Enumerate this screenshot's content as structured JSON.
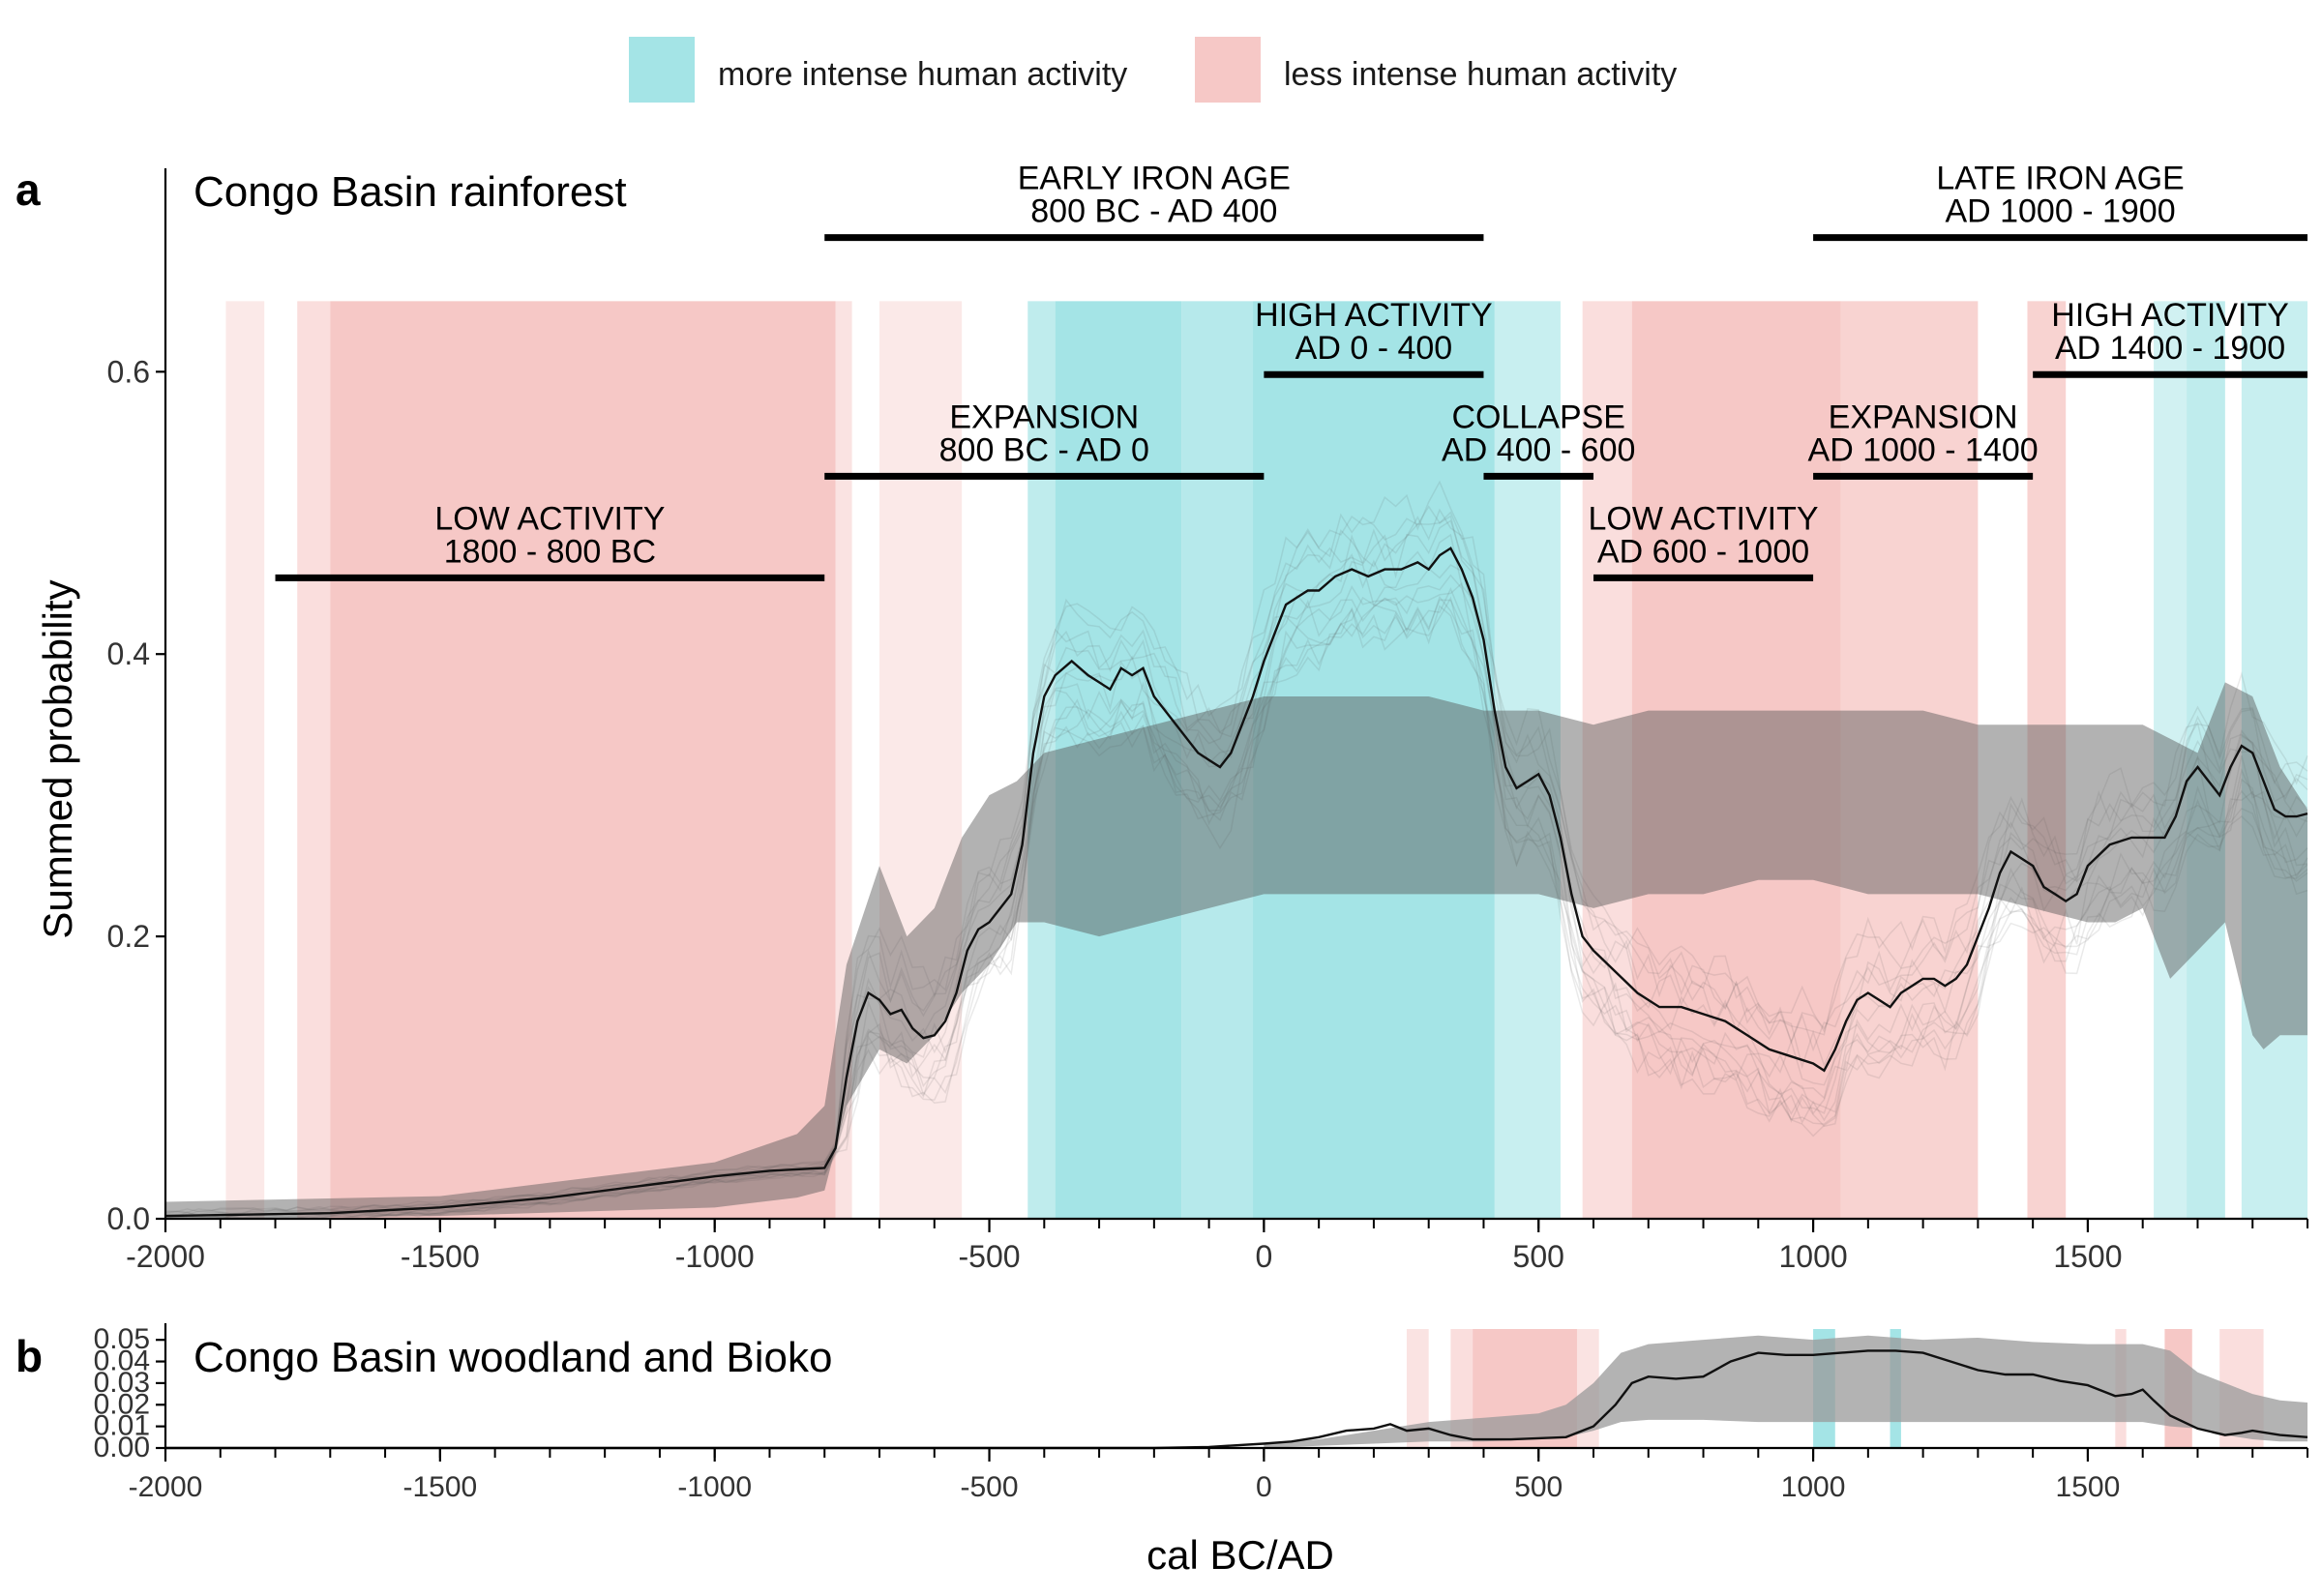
{
  "legend": {
    "items": [
      {
        "label": "more intense human activity",
        "color": "#a4e4e6"
      },
      {
        "label": "less intense human activity",
        "color": "#f6c8c6"
      }
    ]
  },
  "chart_data": [
    {
      "panel": "a",
      "title": "Congo Basin rainforest",
      "type": "area",
      "xlabel": "",
      "ylabel": "Summed probability",
      "xlim": [
        -2000,
        1900
      ],
      "ylim": [
        0,
        0.74
      ],
      "x_ticks": [
        -2000,
        -1500,
        -1000,
        -500,
        0,
        500,
        1000,
        1500
      ],
      "x_tick_labels": [
        "-2000",
        "-1500",
        "-1000",
        "-500",
        "0",
        "500",
        "1000",
        "1500"
      ],
      "y_ticks": [
        0.0,
        0.2,
        0.4,
        0.6
      ],
      "y_tick_labels": [
        "0.0",
        "0.2",
        "0.4",
        "0.6"
      ],
      "grid": false,
      "shading_top": 0.65,
      "periods": [
        {
          "line1": "EARLY IRON AGE",
          "line2": "800 BC - AD 400",
          "start": -800,
          "end": 400,
          "y": 0.695
        },
        {
          "line1": "LATE IRON AGE",
          "line2": "AD 1000 - 1900",
          "start": 1000,
          "end": 1900,
          "y": 0.695
        },
        {
          "line1": "HIGH ACTIVITY",
          "line2": "AD 0 - 400",
          "start": 0,
          "end": 400,
          "y": 0.598
        },
        {
          "line1": "HIGH ACTIVITY",
          "line2": "AD 1400 - 1900",
          "start": 1400,
          "end": 1900,
          "y": 0.598
        },
        {
          "line1": "EXPANSION",
          "line2": "800 BC - AD 0",
          "start": -800,
          "end": 0,
          "y": 0.526
        },
        {
          "line1": "COLLAPSE",
          "line2": "AD 400 - 600",
          "start": 400,
          "end": 600,
          "y": 0.526
        },
        {
          "line1": "EXPANSION",
          "line2": "AD 1000 - 1400",
          "start": 1000,
          "end": 1400,
          "y": 0.526
        },
        {
          "line1": "LOW ACTIVITY",
          "line2": "1800 - 800 BC",
          "start": -1800,
          "end": -800,
          "y": 0.454
        },
        {
          "line1": "LOW ACTIVITY",
          "line2": "AD 600 - 1000",
          "start": 600,
          "end": 1000,
          "y": 0.454
        }
      ],
      "bands": [
        {
          "start": -1890,
          "end": -1820,
          "kind": "less",
          "alpha": 0.4
        },
        {
          "start": -1760,
          "end": -1700,
          "kind": "less",
          "alpha": 0.6
        },
        {
          "start": -1700,
          "end": -780,
          "kind": "less",
          "alpha": 1.0
        },
        {
          "start": -780,
          "end": -750,
          "kind": "less",
          "alpha": 0.5
        },
        {
          "start": -700,
          "end": -550,
          "kind": "less",
          "alpha": 0.4
        },
        {
          "start": -430,
          "end": -380,
          "kind": "more",
          "alpha": 0.7
        },
        {
          "start": -380,
          "end": -150,
          "kind": "more",
          "alpha": 1.0
        },
        {
          "start": -150,
          "end": -20,
          "kind": "more",
          "alpha": 0.8
        },
        {
          "start": -20,
          "end": 420,
          "kind": "more",
          "alpha": 1.0
        },
        {
          "start": 420,
          "end": 540,
          "kind": "more",
          "alpha": 0.6
        },
        {
          "start": 580,
          "end": 670,
          "kind": "less",
          "alpha": 0.6
        },
        {
          "start": 670,
          "end": 1050,
          "kind": "less",
          "alpha": 1.0
        },
        {
          "start": 1050,
          "end": 1300,
          "kind": "less",
          "alpha": 0.8
        },
        {
          "start": 1390,
          "end": 1460,
          "kind": "less",
          "alpha": 0.8
        },
        {
          "start": 1620,
          "end": 1680,
          "kind": "more",
          "alpha": 0.5
        },
        {
          "start": 1680,
          "end": 1750,
          "kind": "more",
          "alpha": 0.7
        },
        {
          "start": 1780,
          "end": 1900,
          "kind": "more",
          "alpha": 0.6
        }
      ],
      "null_envelope": {
        "x": [
          -2000,
          -1500,
          -1000,
          -850,
          -800,
          -760,
          -700,
          -650,
          -600,
          -550,
          -500,
          -450,
          -400,
          -300,
          -200,
          -100,
          0,
          100,
          200,
          300,
          400,
          500,
          600,
          700,
          800,
          900,
          1000,
          1100,
          1200,
          1300,
          1400,
          1500,
          1550,
          1600,
          1650,
          1700,
          1750,
          1800,
          1820,
          1850,
          1900
        ],
        "lower": [
          0.0,
          0.002,
          0.008,
          0.015,
          0.02,
          0.08,
          0.12,
          0.11,
          0.13,
          0.16,
          0.18,
          0.21,
          0.21,
          0.2,
          0.21,
          0.22,
          0.23,
          0.23,
          0.23,
          0.23,
          0.23,
          0.23,
          0.22,
          0.23,
          0.23,
          0.24,
          0.24,
          0.23,
          0.23,
          0.23,
          0.22,
          0.21,
          0.21,
          0.22,
          0.17,
          0.19,
          0.21,
          0.13,
          0.12,
          0.13,
          0.13
        ],
        "upper": [
          0.012,
          0.016,
          0.04,
          0.06,
          0.08,
          0.18,
          0.25,
          0.2,
          0.22,
          0.27,
          0.3,
          0.31,
          0.33,
          0.34,
          0.35,
          0.36,
          0.37,
          0.37,
          0.37,
          0.37,
          0.36,
          0.36,
          0.35,
          0.36,
          0.36,
          0.36,
          0.36,
          0.36,
          0.36,
          0.35,
          0.35,
          0.35,
          0.35,
          0.35,
          0.34,
          0.33,
          0.38,
          0.37,
          0.35,
          0.32,
          0.29
        ]
      },
      "spd": {
        "x": [
          -2000,
          -1700,
          -1500,
          -1300,
          -1100,
          -1000,
          -900,
          -800,
          -780,
          -760,
          -740,
          -720,
          -700,
          -680,
          -660,
          -640,
          -620,
          -600,
          -580,
          -560,
          -540,
          -520,
          -500,
          -480,
          -460,
          -440,
          -420,
          -400,
          -380,
          -350,
          -320,
          -300,
          -280,
          -260,
          -240,
          -220,
          -200,
          -180,
          -160,
          -140,
          -120,
          -100,
          -80,
          -60,
          -40,
          -20,
          0,
          20,
          40,
          60,
          80,
          100,
          130,
          160,
          190,
          220,
          250,
          280,
          300,
          320,
          340,
          360,
          380,
          400,
          420,
          440,
          460,
          480,
          500,
          520,
          540,
          560,
          580,
          600,
          640,
          680,
          720,
          760,
          800,
          840,
          880,
          920,
          960,
          1000,
          1020,
          1040,
          1060,
          1080,
          1100,
          1120,
          1140,
          1160,
          1180,
          1200,
          1220,
          1240,
          1260,
          1280,
          1300,
          1320,
          1340,
          1360,
          1380,
          1400,
          1420,
          1440,
          1460,
          1480,
          1500,
          1540,
          1580,
          1600,
          1620,
          1640,
          1660,
          1680,
          1700,
          1720,
          1740,
          1760,
          1780,
          1800,
          1820,
          1840,
          1860,
          1880,
          1900
        ],
        "y": [
          0.002,
          0.004,
          0.008,
          0.015,
          0.025,
          0.03,
          0.034,
          0.036,
          0.05,
          0.1,
          0.14,
          0.16,
          0.155,
          0.145,
          0.148,
          0.135,
          0.128,
          0.13,
          0.14,
          0.16,
          0.19,
          0.205,
          0.21,
          0.22,
          0.23,
          0.265,
          0.33,
          0.37,
          0.385,
          0.395,
          0.385,
          0.38,
          0.375,
          0.39,
          0.385,
          0.39,
          0.37,
          0.36,
          0.35,
          0.34,
          0.33,
          0.325,
          0.32,
          0.33,
          0.35,
          0.37,
          0.395,
          0.415,
          0.435,
          0.44,
          0.445,
          0.445,
          0.455,
          0.46,
          0.455,
          0.46,
          0.46,
          0.465,
          0.46,
          0.47,
          0.475,
          0.46,
          0.44,
          0.41,
          0.36,
          0.32,
          0.305,
          0.31,
          0.315,
          0.3,
          0.27,
          0.23,
          0.2,
          0.19,
          0.175,
          0.16,
          0.15,
          0.15,
          0.145,
          0.14,
          0.13,
          0.12,
          0.115,
          0.11,
          0.105,
          0.12,
          0.14,
          0.155,
          0.16,
          0.155,
          0.15,
          0.16,
          0.165,
          0.17,
          0.17,
          0.165,
          0.17,
          0.18,
          0.2,
          0.22,
          0.245,
          0.26,
          0.255,
          0.25,
          0.235,
          0.23,
          0.225,
          0.23,
          0.25,
          0.265,
          0.27,
          0.27,
          0.27,
          0.27,
          0.285,
          0.31,
          0.32,
          0.31,
          0.3,
          0.32,
          0.335,
          0.33,
          0.31,
          0.29,
          0.285,
          0.285,
          0.287
        ]
      }
    },
    {
      "panel": "b",
      "title": "Congo Basin woodland and Bioko",
      "type": "area",
      "xlabel": "cal BC/AD",
      "ylabel": "",
      "xlim": [
        -2000,
        1900
      ],
      "ylim": [
        0,
        0.055
      ],
      "x_ticks": [
        -2000,
        -1500,
        -1000,
        -500,
        0,
        500,
        1000,
        1500
      ],
      "x_tick_labels": [
        "-2000",
        "-1500",
        "-1000",
        "-500",
        "0",
        "500",
        "1000",
        "1500"
      ],
      "y_ticks": [
        0.0,
        0.01,
        0.02,
        0.03,
        0.04,
        0.05
      ],
      "y_tick_labels": [
        "0.00",
        "0.01",
        "0.02",
        "0.03",
        "0.04",
        "0.05"
      ],
      "grid": false,
      "shading_top": 0.055,
      "bands": [
        {
          "start": 260,
          "end": 300,
          "kind": "less",
          "alpha": 0.5
        },
        {
          "start": 340,
          "end": 380,
          "kind": "less",
          "alpha": 0.6
        },
        {
          "start": 380,
          "end": 570,
          "kind": "less",
          "alpha": 1.0
        },
        {
          "start": 570,
          "end": 610,
          "kind": "less",
          "alpha": 0.5
        },
        {
          "start": 1000,
          "end": 1040,
          "kind": "more",
          "alpha": 1.0
        },
        {
          "start": 1140,
          "end": 1160,
          "kind": "more",
          "alpha": 1.0
        },
        {
          "start": 1550,
          "end": 1570,
          "kind": "less",
          "alpha": 0.6
        },
        {
          "start": 1640,
          "end": 1690,
          "kind": "less",
          "alpha": 1.0
        },
        {
          "start": 1740,
          "end": 1820,
          "kind": "less",
          "alpha": 0.6
        }
      ],
      "null_envelope": {
        "x": [
          0,
          100,
          200,
          300,
          400,
          500,
          550,
          600,
          650,
          700,
          800,
          900,
          1000,
          1100,
          1200,
          1300,
          1400,
          1500,
          1600,
          1650,
          1700,
          1750,
          1800,
          1850,
          1900
        ],
        "lower": [
          0.0,
          0.001,
          0.002,
          0.003,
          0.003,
          0.004,
          0.005,
          0.008,
          0.012,
          0.013,
          0.013,
          0.012,
          0.012,
          0.012,
          0.012,
          0.012,
          0.012,
          0.012,
          0.012,
          0.01,
          0.009,
          0.006,
          0.004,
          0.003,
          0.003
        ],
        "upper": [
          0.002,
          0.004,
          0.008,
          0.012,
          0.014,
          0.016,
          0.02,
          0.03,
          0.044,
          0.048,
          0.05,
          0.052,
          0.05,
          0.052,
          0.05,
          0.051,
          0.049,
          0.048,
          0.048,
          0.045,
          0.035,
          0.03,
          0.025,
          0.022,
          0.021
        ]
      },
      "spd": {
        "x": [
          -2000,
          -200,
          -100,
          0,
          50,
          100,
          150,
          200,
          230,
          260,
          300,
          340,
          380,
          450,
          550,
          600,
          640,
          670,
          700,
          750,
          800,
          850,
          900,
          950,
          1000,
          1050,
          1100,
          1150,
          1200,
          1250,
          1300,
          1350,
          1400,
          1450,
          1500,
          1550,
          1580,
          1600,
          1620,
          1650,
          1700,
          1750,
          1780,
          1800,
          1850,
          1900
        ],
        "y": [
          0.0,
          0.0,
          0.0005,
          0.002,
          0.003,
          0.005,
          0.008,
          0.009,
          0.011,
          0.008,
          0.009,
          0.006,
          0.004,
          0.004,
          0.005,
          0.01,
          0.02,
          0.03,
          0.033,
          0.032,
          0.033,
          0.04,
          0.044,
          0.043,
          0.043,
          0.044,
          0.045,
          0.045,
          0.044,
          0.04,
          0.036,
          0.034,
          0.034,
          0.031,
          0.029,
          0.024,
          0.025,
          0.027,
          0.022,
          0.015,
          0.009,
          0.006,
          0.007,
          0.008,
          0.006,
          0.005
        ]
      }
    }
  ]
}
